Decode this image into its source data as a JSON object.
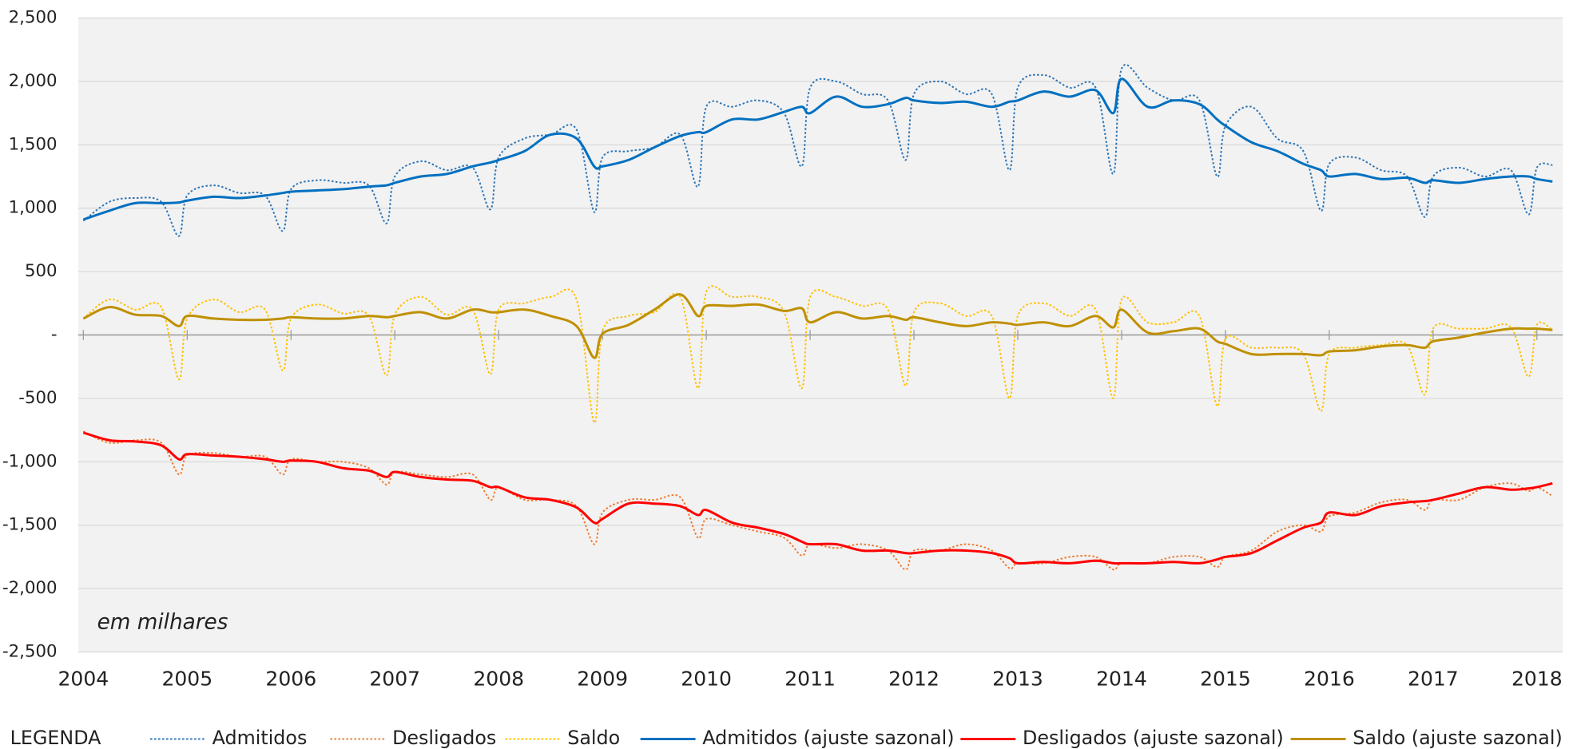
{
  "chart_data": {
    "type": "line",
    "annotation": "em milhares",
    "legend_title": "LEGENDA",
    "legend": "bottom",
    "grid": true,
    "xlim": [
      2003.95,
      2018.25
    ],
    "xticks": [
      2004,
      2005,
      2006,
      2007,
      2008,
      2009,
      2010,
      2011,
      2012,
      2013,
      2014,
      2015,
      2016,
      2017,
      2018
    ],
    "ylim": [
      -2500,
      2500
    ],
    "yticks": [
      {
        "value": 2500,
        "label": "2,500"
      },
      {
        "value": 2000,
        "label": "2,000"
      },
      {
        "value": 1500,
        "label": "1,500"
      },
      {
        "value": 1000,
        "label": "1,000"
      },
      500,
      {
        "value": 0,
        "label": "-"
      },
      -500,
      {
        "value": -1000,
        "label": "-1,000"
      },
      {
        "value": -1500,
        "label": "-1,500"
      },
      {
        "value": -2000,
        "label": "-2,000"
      },
      {
        "value": -2500,
        "label": "-2,500"
      }
    ],
    "x": [
      2004,
      2004.25,
      2004.5,
      2004.75,
      2004.92,
      2005,
      2005.25,
      2005.5,
      2005.75,
      2005.92,
      2006,
      2006.25,
      2006.5,
      2006.75,
      2006.92,
      2007,
      2007.25,
      2007.5,
      2007.75,
      2007.92,
      2008,
      2008.25,
      2008.5,
      2008.75,
      2008.92,
      2009,
      2009.25,
      2009.5,
      2009.75,
      2009.92,
      2010,
      2010.25,
      2010.5,
      2010.75,
      2010.92,
      2011,
      2011.25,
      2011.5,
      2011.75,
      2011.92,
      2012,
      2012.25,
      2012.5,
      2012.75,
      2012.92,
      2013,
      2013.25,
      2013.5,
      2013.75,
      2013.92,
      2014,
      2014.25,
      2014.5,
      2014.75,
      2014.92,
      2015,
      2015.25,
      2015.5,
      2015.75,
      2015.92,
      2016,
      2016.25,
      2016.5,
      2016.75,
      2016.92,
      2017,
      2017.25,
      2017.5,
      2017.75,
      2017.92,
      2018,
      2018.15
    ],
    "series": [
      {
        "name": "Admitidos",
        "color": "#2e75b6",
        "style": "dotted",
        "values": [
          900,
          1050,
          1080,
          1050,
          780,
          1100,
          1180,
          1120,
          1100,
          820,
          1150,
          1220,
          1200,
          1180,
          880,
          1250,
          1370,
          1300,
          1320,
          990,
          1400,
          1550,
          1580,
          1620,
          970,
          1400,
          1450,
          1480,
          1580,
          1170,
          1800,
          1800,
          1850,
          1750,
          1330,
          1950,
          2000,
          1900,
          1850,
          1380,
          1900,
          2000,
          1900,
          1900,
          1300,
          1950,
          2050,
          1950,
          1950,
          1270,
          2100,
          1950,
          1850,
          1850,
          1250,
          1650,
          1800,
          1550,
          1450,
          980,
          1350,
          1400,
          1300,
          1250,
          930,
          1250,
          1320,
          1250,
          1300,
          950,
          1320,
          1340
        ]
      },
      {
        "name": "Desligados",
        "color": "#ed7d31",
        "style": "dotted",
        "values": [
          -760,
          -850,
          -830,
          -850,
          -1100,
          -950,
          -930,
          -960,
          -960,
          -1100,
          -980,
          -1000,
          -1000,
          -1050,
          -1180,
          -1080,
          -1100,
          -1120,
          -1100,
          -1300,
          -1200,
          -1300,
          -1300,
          -1350,
          -1650,
          -1400,
          -1300,
          -1300,
          -1280,
          -1600,
          -1450,
          -1500,
          -1550,
          -1600,
          -1740,
          -1650,
          -1680,
          -1650,
          -1700,
          -1850,
          -1700,
          -1700,
          -1650,
          -1700,
          -1840,
          -1800,
          -1800,
          -1750,
          -1750,
          -1850,
          -1800,
          -1800,
          -1750,
          -1750,
          -1830,
          -1750,
          -1700,
          -1550,
          -1500,
          -1550,
          -1430,
          -1400,
          -1320,
          -1300,
          -1380,
          -1300,
          -1300,
          -1200,
          -1170,
          -1230,
          -1200,
          -1270
        ]
      },
      {
        "name": "Saldo",
        "color": "#ffc000",
        "style": "dotted",
        "values": [
          130,
          280,
          200,
          220,
          -350,
          130,
          280,
          180,
          200,
          -280,
          130,
          240,
          170,
          150,
          -320,
          160,
          300,
          160,
          200,
          -310,
          200,
          250,
          300,
          280,
          -690,
          30,
          150,
          180,
          300,
          -420,
          340,
          300,
          300,
          180,
          -420,
          300,
          300,
          230,
          200,
          -400,
          180,
          250,
          150,
          150,
          -500,
          150,
          250,
          150,
          200,
          -500,
          280,
          100,
          100,
          150,
          -560,
          -30,
          -100,
          -100,
          -150,
          -600,
          -150,
          -100,
          -80,
          -80,
          -470,
          50,
          50,
          50,
          60,
          -330,
          80,
          40
        ]
      },
      {
        "name": "Admitidos (ajuste sazonal)",
        "color": "#0070c0",
        "style": "solid",
        "values": [
          910,
          980,
          1040,
          1040,
          1045,
          1060,
          1090,
          1080,
          1100,
          1120,
          1130,
          1140,
          1150,
          1170,
          1180,
          1200,
          1250,
          1270,
          1330,
          1360,
          1380,
          1450,
          1580,
          1550,
          1330,
          1330,
          1380,
          1480,
          1570,
          1600,
          1600,
          1700,
          1700,
          1760,
          1800,
          1750,
          1880,
          1800,
          1820,
          1870,
          1850,
          1830,
          1840,
          1800,
          1840,
          1850,
          1920,
          1880,
          1930,
          1750,
          2020,
          1800,
          1850,
          1820,
          1700,
          1650,
          1520,
          1450,
          1350,
          1300,
          1250,
          1270,
          1230,
          1240,
          1200,
          1220,
          1200,
          1230,
          1250,
          1250,
          1230,
          1210
        ]
      },
      {
        "name": "Desligados (ajuste sazonal)",
        "color": "#ff0000",
        "style": "solid",
        "values": [
          -770,
          -830,
          -840,
          -870,
          -980,
          -940,
          -950,
          -960,
          -980,
          -1000,
          -990,
          -1000,
          -1050,
          -1070,
          -1120,
          -1080,
          -1120,
          -1140,
          -1150,
          -1200,
          -1200,
          -1280,
          -1300,
          -1360,
          -1480,
          -1450,
          -1330,
          -1330,
          -1350,
          -1420,
          -1380,
          -1480,
          -1520,
          -1570,
          -1630,
          -1650,
          -1650,
          -1700,
          -1700,
          -1720,
          -1720,
          -1700,
          -1700,
          -1720,
          -1760,
          -1800,
          -1790,
          -1800,
          -1780,
          -1800,
          -1800,
          -1800,
          -1790,
          -1800,
          -1770,
          -1750,
          -1720,
          -1620,
          -1520,
          -1480,
          -1400,
          -1420,
          -1350,
          -1320,
          -1310,
          -1300,
          -1250,
          -1200,
          -1220,
          -1210,
          -1200,
          -1170
        ]
      },
      {
        "name": "Saldo (ajuste sazonal)",
        "color": "#bf9000",
        "style": "solid",
        "values": [
          130,
          220,
          160,
          150,
          70,
          150,
          130,
          120,
          120,
          130,
          140,
          130,
          130,
          150,
          140,
          150,
          180,
          130,
          200,
          180,
          180,
          200,
          150,
          70,
          -180,
          10,
          80,
          200,
          320,
          150,
          230,
          230,
          240,
          190,
          210,
          100,
          180,
          130,
          150,
          120,
          140,
          100,
          70,
          100,
          90,
          80,
          100,
          70,
          150,
          60,
          200,
          20,
          30,
          50,
          -50,
          -70,
          -150,
          -150,
          -150,
          -160,
          -130,
          -120,
          -90,
          -80,
          -100,
          -50,
          -20,
          20,
          50,
          50,
          50,
          40
        ]
      }
    ]
  }
}
